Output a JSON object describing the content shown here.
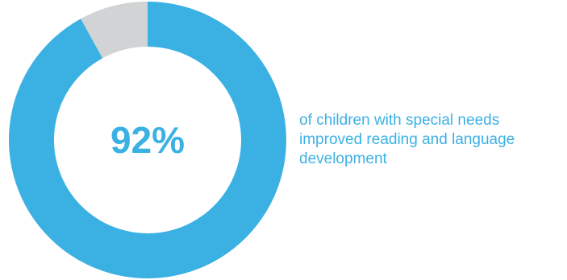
{
  "chart_data": {
    "type": "pie",
    "style": "donut",
    "slices": [
      {
        "label": "improved reading and language development",
        "value": 92,
        "color": "#3bb1e3"
      },
      {
        "label": "remainder",
        "value": 8,
        "color": "#d1d3d4"
      }
    ],
    "center_label": "92%"
  },
  "caption": {
    "lines": [
      "of children with special needs",
      "improved reading and language",
      "development"
    ]
  },
  "colors": {
    "accent": "#3bb1e3",
    "remainder": "#d1d3d4",
    "text": "#3bb1e3"
  }
}
